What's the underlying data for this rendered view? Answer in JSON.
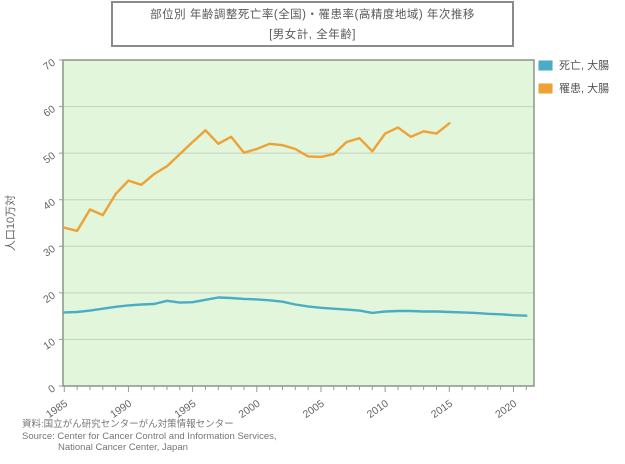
{
  "title": {
    "line1": "部位別 年齢調整死亡率(全国)・罹患率(高精度地域) 年次推移",
    "line2": "[男女計, 全年齢]"
  },
  "legend": {
    "items": [
      {
        "label": "死亡, 大腸",
        "color": "#4BACC6"
      },
      {
        "label": "罹患, 大腸",
        "color": "#EEA236"
      }
    ]
  },
  "footer": {
    "line1": "資料:国立がん研究センターがん対策情報センター",
    "line2": "Source: Center for Cancer Control and Information Services,",
    "line3": "National Cancer Center, Japan"
  },
  "colors": {
    "plot_background": "#E1F6DA",
    "plot_border": "#8f9c8f",
    "gridline": "#c3cfc3",
    "tick": "#999999",
    "axis_text": "#666666"
  },
  "chart_data": {
    "type": "line",
    "title": "部位別 年齢調整死亡率(全国)・罹患率(高精度地域) 年次推移 [男女計, 全年齢]",
    "xlabel": "",
    "ylabel": "人口10万対",
    "ylim": [
      0,
      70
    ],
    "ytick_interval": 10,
    "xlim": [
      1984.9,
      2021.6
    ],
    "xticks": [
      1985,
      1990,
      1995,
      2000,
      2005,
      2010,
      2015,
      2020
    ],
    "minor_xtick_every_year": true,
    "grid": true,
    "legend_position": "top-right-outside",
    "series": [
      {
        "name": "死亡, 大腸",
        "color": "#4BACC6",
        "x": [
          1985,
          1986,
          1987,
          1988,
          1989,
          1990,
          1991,
          1992,
          1993,
          1994,
          1995,
          1996,
          1997,
          1998,
          1999,
          2000,
          2001,
          2002,
          2003,
          2004,
          2005,
          2006,
          2007,
          2008,
          2009,
          2010,
          2011,
          2012,
          2013,
          2014,
          2015,
          2016,
          2017,
          2018,
          2019,
          2020,
          2021
        ],
        "values": [
          15.8,
          15.9,
          16.2,
          16.6,
          17.0,
          17.3,
          17.5,
          17.6,
          18.3,
          17.9,
          18.0,
          18.5,
          19.0,
          18.9,
          18.7,
          18.6,
          18.4,
          18.1,
          17.5,
          17.1,
          16.8,
          16.6,
          16.4,
          16.2,
          15.7,
          16.0,
          16.1,
          16.1,
          16.0,
          16.0,
          15.9,
          15.8,
          15.7,
          15.5,
          15.4,
          15.2,
          15.1
        ]
      },
      {
        "name": "罹患, 大腸",
        "color": "#EEA236",
        "x": [
          1985,
          1986,
          1987,
          1988,
          1989,
          1990,
          1991,
          1992,
          1993,
          1994,
          1995,
          1996,
          1997,
          1998,
          1999,
          2000,
          2001,
          2002,
          2003,
          2004,
          2005,
          2006,
          2007,
          2008,
          2009,
          2010,
          2011,
          2012,
          2013,
          2014,
          2015
        ],
        "values": [
          34.0,
          33.3,
          37.9,
          36.7,
          41.2,
          44.1,
          43.2,
          45.5,
          47.2,
          49.8,
          52.4,
          54.9,
          52.0,
          53.5,
          50.1,
          50.9,
          52.0,
          51.7,
          50.9,
          49.3,
          49.2,
          49.8,
          52.4,
          53.2,
          50.4,
          54.2,
          55.5,
          53.5,
          54.7,
          54.2,
          56.4
        ]
      }
    ]
  }
}
